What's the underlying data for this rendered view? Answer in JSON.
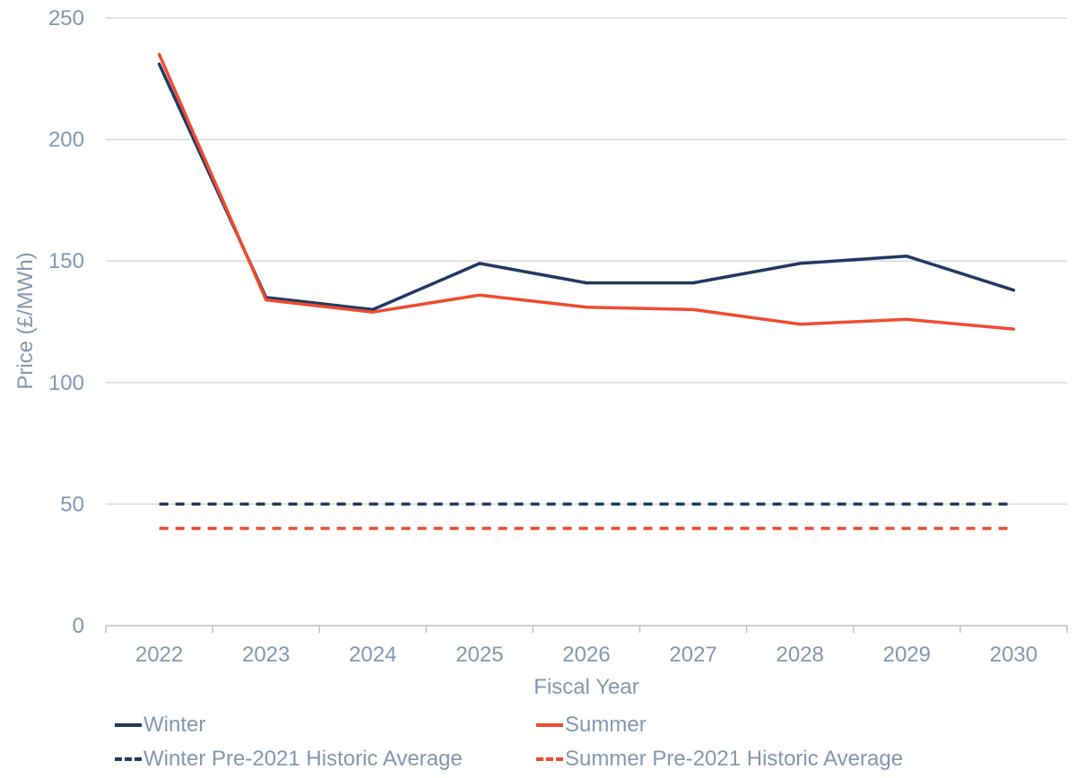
{
  "chart_data": {
    "type": "line",
    "xlabel": "Fiscal Year",
    "ylabel": "Price (£/MWh)",
    "categories": [
      "2022",
      "2023",
      "2024",
      "2025",
      "2026",
      "2027",
      "2028",
      "2029",
      "2030"
    ],
    "ylim": [
      0,
      250
    ],
    "yticks": [
      "0",
      "50",
      "100",
      "150",
      "200",
      "250"
    ],
    "grid": "horizontal",
    "legend_position": "bottom",
    "series": [
      {
        "name": "Winter",
        "color": "#203864",
        "style": "solid",
        "values": [
          231,
          135,
          130,
          149,
          141,
          141,
          149,
          152,
          138
        ]
      },
      {
        "name": "Summer",
        "color": "#ef4b30",
        "style": "solid",
        "values": [
          235,
          134,
          129,
          136,
          131,
          130,
          124,
          126,
          122
        ]
      },
      {
        "name": "Winter Pre-2021 Historic Average",
        "color": "#203864",
        "style": "dashed",
        "values": [
          50,
          50,
          50,
          50,
          50,
          50,
          50,
          50,
          50
        ]
      },
      {
        "name": "Summer Pre-2021 Historic Average",
        "color": "#ef4b30",
        "style": "dashed",
        "values": [
          40,
          40,
          40,
          40,
          40,
          40,
          40,
          40,
          40
        ]
      }
    ]
  }
}
